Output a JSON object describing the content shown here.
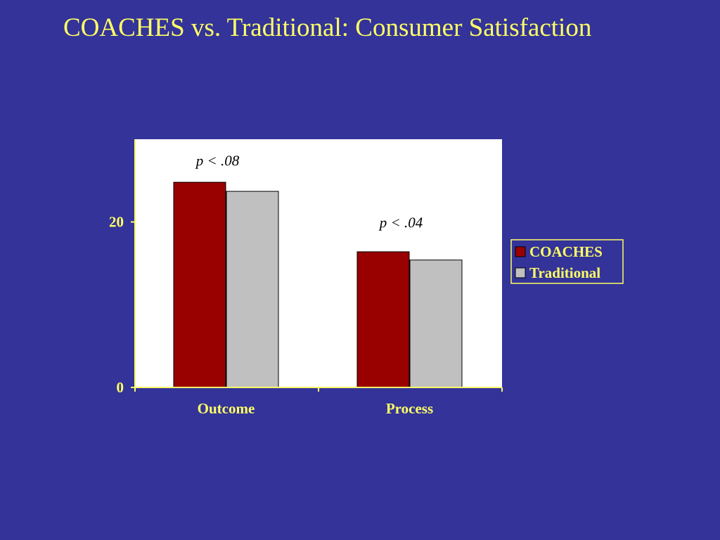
{
  "slide": {
    "title": "COACHES vs. Traditional: Consumer Satisfaction"
  },
  "chart_data": {
    "type": "bar",
    "categories": [
      "Outcome",
      "Process"
    ],
    "series": [
      {
        "name": "COACHES",
        "values": [
          24.8,
          16.4
        ],
        "color": "#990000"
      },
      {
        "name": "Traditional",
        "values": [
          23.7,
          15.4
        ],
        "color": "#C0C0C0"
      }
    ],
    "ylim": [
      0,
      30
    ],
    "yticks": [
      0,
      20
    ],
    "ytick_labels": [
      "0",
      "20"
    ],
    "annotations": [
      {
        "text": "p < .08",
        "category": "Outcome",
        "y": 27.5
      },
      {
        "text": "p < .04",
        "category": "Process",
        "y": 20
      }
    ],
    "legend": {
      "placement": "right"
    },
    "grid": false,
    "colors": {
      "background": "#333399",
      "plot_area": "#FFFFFF",
      "axis": "#FFFF66",
      "text": "#FFFF66"
    }
  }
}
